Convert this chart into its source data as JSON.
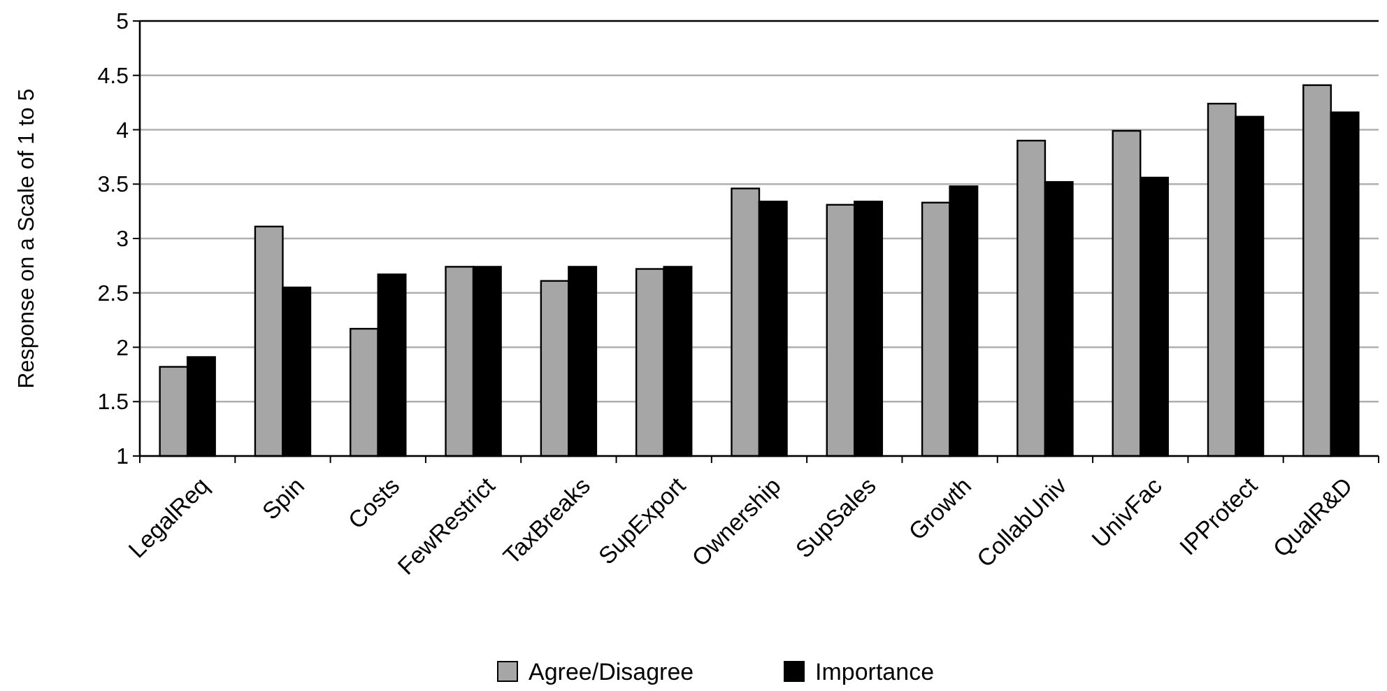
{
  "chart_data": {
    "type": "bar",
    "ylabel": "Response on a Scale of 1 to 5",
    "categories": [
      "LegalReq",
      "Spin",
      "Costs",
      "FewRestrict",
      "TaxBreaks",
      "SupExport",
      "Ownership",
      "SupSales",
      "Growth",
      "CollabUniv",
      "UnivFac",
      "IPProtect",
      "QualR&D"
    ],
    "series": [
      {
        "name": "Agree/Disagree",
        "color": "#a6a6a6",
        "values": [
          1.82,
          3.11,
          2.17,
          2.74,
          2.61,
          2.72,
          3.46,
          3.31,
          3.33,
          3.9,
          3.99,
          4.24,
          4.41
        ]
      },
      {
        "name": "Importance",
        "color": "#000000",
        "values": [
          1.91,
          2.55,
          2.67,
          2.74,
          2.74,
          2.74,
          3.34,
          3.34,
          3.48,
          3.52,
          3.56,
          4.12,
          4.16
        ]
      }
    ],
    "ylim": [
      1,
      5
    ],
    "yticks": [
      1,
      1.5,
      2,
      2.5,
      3,
      3.5,
      4,
      4.5,
      5
    ],
    "grid": "y",
    "legend": "bottom"
  }
}
